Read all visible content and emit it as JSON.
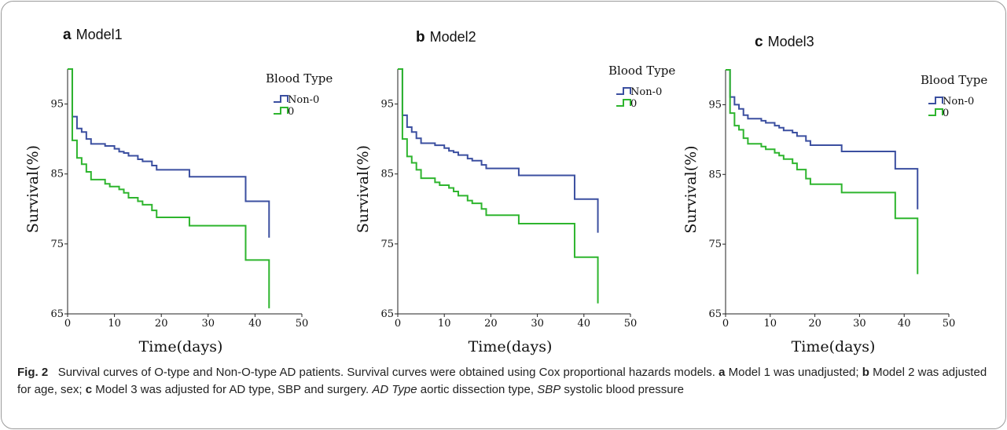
{
  "figure": {
    "caption": {
      "fig_label": "Fig. 2",
      "part1": "Survival curves of O-type and Non-O-type AD patients. Survival curves were obtained using Cox proportional hazards models.",
      "label_a": "a",
      "text_a": "Model 1 was unadjusted;",
      "label_b": "b",
      "text_b": "Model 2 was adjusted for age, sex;",
      "label_c": "c",
      "text_c": "Model 3 was adjusted for AD type, SBP and surgery.",
      "abbr1": "AD Type",
      "abbr1_def": "aortic dissection type,",
      "abbr2": "SBP",
      "abbr2_def": "systolic blood pressure"
    }
  },
  "chart_data": [
    {
      "type": "line",
      "panel_label": "a",
      "title": "Model1",
      "xlabel": "Time(days)",
      "ylabel": "Survival(%)",
      "xlim": [
        0,
        50
      ],
      "ylim": [
        65,
        100
      ],
      "x_ticks": [
        "0",
        "10",
        "20",
        "30",
        "40",
        "50"
      ],
      "y_ticks": [
        "65",
        "75",
        "85",
        "95"
      ],
      "legend_title": "Blood Type",
      "legend_position": "top-right",
      "series": [
        {
          "name": "Non-0",
          "color": "#3b4fa0",
          "steps": [
            [
              0,
              100
            ],
            [
              1,
              93.2
            ],
            [
              2,
              91.5
            ],
            [
              3,
              91
            ],
            [
              4,
              90
            ],
            [
              5,
              89.3
            ],
            [
              8,
              89
            ],
            [
              10,
              88.6
            ],
            [
              11,
              88.2
            ],
            [
              12,
              88
            ],
            [
              13,
              87.6
            ],
            [
              15,
              87.1
            ],
            [
              16,
              86.8
            ],
            [
              18,
              86.2
            ],
            [
              19,
              85.6
            ],
            [
              26,
              84.6
            ],
            [
              38,
              81.1
            ],
            [
              43,
              75.9
            ]
          ]
        },
        {
          "name": "0",
          "color": "#2eb52e",
          "steps": [
            [
              0,
              100
            ],
            [
              1,
              89.8
            ],
            [
              2,
              87.3
            ],
            [
              3,
              86.4
            ],
            [
              4,
              85.3
            ],
            [
              5,
              84.2
            ],
            [
              8,
              83.6
            ],
            [
              9,
              83.2
            ],
            [
              11,
              82.8
            ],
            [
              12,
              82.3
            ],
            [
              13,
              81.6
            ],
            [
              15,
              81.1
            ],
            [
              16,
              80.6
            ],
            [
              18,
              79.8
            ],
            [
              19,
              78.8
            ],
            [
              26,
              77.6
            ],
            [
              38,
              72.7
            ],
            [
              43,
              65.8
            ]
          ]
        }
      ]
    },
    {
      "type": "line",
      "panel_label": "b",
      "title": "Model2",
      "xlabel": "Time(days)",
      "ylabel": "Survival(%)",
      "xlim": [
        0,
        50
      ],
      "ylim": [
        65,
        100
      ],
      "x_ticks": [
        "0",
        "10",
        "20",
        "30",
        "40",
        "50"
      ],
      "y_ticks": [
        "65",
        "75",
        "85",
        "95"
      ],
      "legend_title": "Blood Type",
      "legend_position": "top-right",
      "series": [
        {
          "name": "Non-0",
          "color": "#3b4fa0",
          "steps": [
            [
              0,
              100
            ],
            [
              1,
              93.4
            ],
            [
              2,
              91.7
            ],
            [
              3,
              91
            ],
            [
              4,
              90.1
            ],
            [
              5,
              89.4
            ],
            [
              8,
              89.1
            ],
            [
              10,
              88.7
            ],
            [
              11,
              88.3
            ],
            [
              12,
              88.1
            ],
            [
              13,
              87.7
            ],
            [
              15,
              87.2
            ],
            [
              16,
              86.9
            ],
            [
              18,
              86.3
            ],
            [
              19,
              85.8
            ],
            [
              26,
              84.8
            ],
            [
              38,
              81.4
            ],
            [
              43,
              76.6
            ]
          ]
        },
        {
          "name": "0",
          "color": "#2eb52e",
          "steps": [
            [
              0,
              100
            ],
            [
              1,
              90
            ],
            [
              2,
              87.5
            ],
            [
              3,
              86.6
            ],
            [
              4,
              85.6
            ],
            [
              5,
              84.4
            ],
            [
              8,
              83.8
            ],
            [
              9,
              83.4
            ],
            [
              11,
              83
            ],
            [
              12,
              82.5
            ],
            [
              13,
              81.9
            ],
            [
              15,
              81.2
            ],
            [
              16,
              80.8
            ],
            [
              18,
              80
            ],
            [
              19,
              79.1
            ],
            [
              26,
              77.9
            ],
            [
              38,
              73.1
            ],
            [
              43,
              66.5
            ]
          ]
        }
      ]
    },
    {
      "type": "line",
      "panel_label": "c",
      "title": "Model3",
      "xlabel": "Time(days)",
      "ylabel": "Survival(%)",
      "xlim": [
        0,
        50
      ],
      "ylim": [
        65,
        100
      ],
      "x_ticks": [
        "0",
        "10",
        "20",
        "30",
        "40",
        "50"
      ],
      "y_ticks": [
        "65",
        "75",
        "85",
        "95"
      ],
      "legend_title": "Blood Type",
      "legend_position": "top-right",
      "series": [
        {
          "name": "Non-0",
          "color": "#3b4fa0",
          "steps": [
            [
              0,
              100
            ],
            [
              1,
              96.1
            ],
            [
              2,
              95
            ],
            [
              3,
              94.4
            ],
            [
              4,
              93.5
            ],
            [
              5,
              93
            ],
            [
              8,
              92.7
            ],
            [
              9,
              92.4
            ],
            [
              11,
              92
            ],
            [
              12,
              91.7
            ],
            [
              13,
              91.3
            ],
            [
              15,
              91
            ],
            [
              16,
              90.5
            ],
            [
              18,
              89.8
            ],
            [
              19,
              89.2
            ],
            [
              26,
              88.3
            ],
            [
              38,
              85.8
            ],
            [
              43,
              80
            ]
          ]
        },
        {
          "name": "0",
          "color": "#2eb52e",
          "steps": [
            [
              0,
              100
            ],
            [
              1,
              93.8
            ],
            [
              2,
              92
            ],
            [
              3,
              91.4
            ],
            [
              4,
              90.2
            ],
            [
              5,
              89.4
            ],
            [
              8,
              89
            ],
            [
              9,
              88.6
            ],
            [
              11,
              88.1
            ],
            [
              12,
              87.7
            ],
            [
              13,
              87.2
            ],
            [
              15,
              86.6
            ],
            [
              16,
              85.7
            ],
            [
              18,
              84.4
            ],
            [
              19,
              83.6
            ],
            [
              26,
              82.4
            ],
            [
              38,
              78.7
            ],
            [
              43,
              70.7
            ]
          ]
        }
      ]
    }
  ]
}
